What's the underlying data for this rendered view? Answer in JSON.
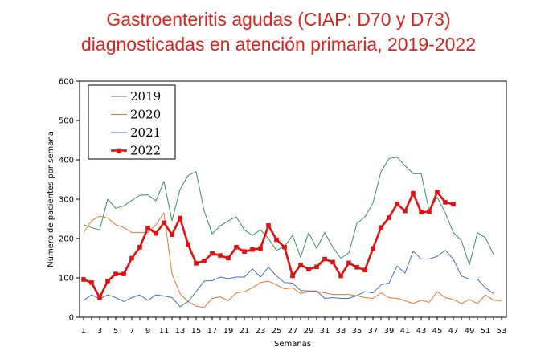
{
  "chart_data": {
    "type": "line",
    "title_line1": "Gastroenteritis agudas (CIAP: D70 y D73)",
    "title_line2": "diagnosticadas en atención primaria, 2019-2022",
    "xlabel": "Semanas",
    "ylabel": "Número de pacientes por semana",
    "xlim": [
      1,
      53
    ],
    "ylim": [
      0,
      600
    ],
    "yticks": [
      0,
      100,
      200,
      300,
      400,
      500,
      600
    ],
    "xticks": [
      1,
      3,
      5,
      7,
      9,
      11,
      13,
      15,
      17,
      19,
      21,
      23,
      25,
      27,
      29,
      31,
      33,
      35,
      37,
      39,
      41,
      43,
      45,
      47,
      49,
      51,
      53
    ],
    "grid": false,
    "legend_position": "top-left",
    "series": [
      {
        "name": "2019",
        "color": "#3a8f5e",
        "markers": false,
        "values": [
          235,
          228,
          222,
          300,
          277,
          283,
          297,
          310,
          311,
          296,
          345,
          245,
          325,
          360,
          370,
          270,
          212,
          232,
          245,
          255,
          222,
          208,
          222,
          200,
          170,
          180,
          208,
          152,
          215,
          175,
          215,
          178,
          150,
          163,
          238,
          255,
          290,
          370,
          403,
          407,
          385,
          365,
          365,
          270,
          305,
          265,
          215,
          195,
          133,
          215,
          202,
          160
        ]
      },
      {
        "name": "2020",
        "color": "#e8772e",
        "markers": false,
        "values": [
          215,
          245,
          257,
          252,
          235,
          228,
          215,
          215,
          215,
          235,
          265,
          110,
          60,
          40,
          28,
          25,
          48,
          52,
          42,
          62,
          65,
          75,
          88,
          92,
          82,
          72,
          75,
          60,
          66,
          65,
          62,
          58,
          58,
          58,
          55,
          50,
          48,
          62,
          50,
          48,
          42,
          35,
          43,
          38,
          65,
          50,
          45,
          35,
          45,
          35,
          57,
          43,
          42
        ]
      },
      {
        "name": "2021",
        "color": "#4472c4",
        "markers": false,
        "values": [
          43,
          57,
          47,
          57,
          50,
          40,
          50,
          57,
          43,
          57,
          54,
          50,
          27,
          40,
          65,
          92,
          93,
          102,
          98,
          102,
          102,
          123,
          102,
          127,
          105,
          88,
          87,
          68,
          67,
          67,
          48,
          50,
          48,
          48,
          55,
          65,
          62,
          82,
          87,
          130,
          112,
          168,
          148,
          148,
          155,
          170,
          148,
          105,
          97,
          97,
          75,
          60
        ]
      },
      {
        "name": "2022",
        "color": "#e3100f",
        "markers": true,
        "values": [
          96,
          88,
          50,
          92,
          110,
          110,
          150,
          178,
          227,
          213,
          240,
          210,
          252,
          185,
          137,
          143,
          162,
          157,
          150,
          178,
          167,
          172,
          175,
          233,
          197,
          178,
          105,
          133,
          122,
          128,
          148,
          140,
          105,
          138,
          127,
          120,
          175,
          228,
          253,
          288,
          270,
          315,
          267,
          268,
          318,
          292,
          287
        ]
      }
    ]
  }
}
